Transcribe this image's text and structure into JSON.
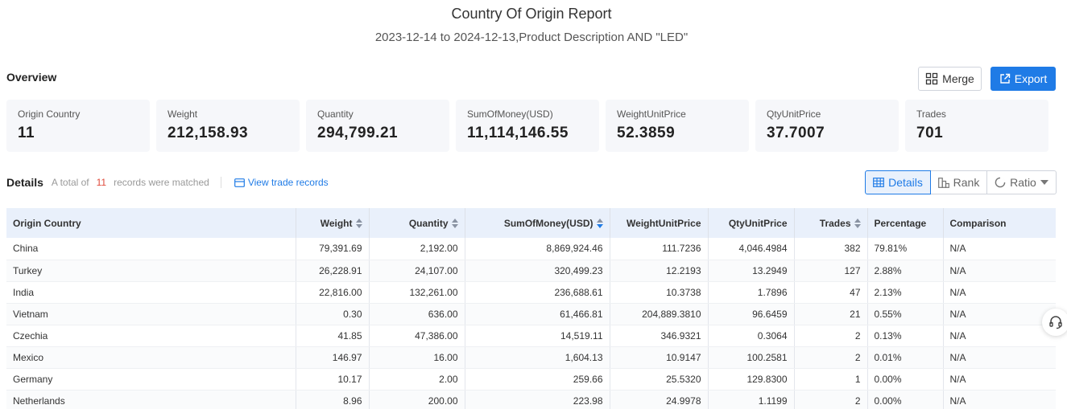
{
  "header": {
    "title": "Country Of Origin Report",
    "subtitle": "2023-12-14 to 2024-12-13,Product Description AND \"LED\""
  },
  "overview": {
    "label": "Overview",
    "merge_label": "Merge",
    "export_label": "Export",
    "stats": [
      {
        "label": "Origin Country",
        "value": "11"
      },
      {
        "label": "Weight",
        "value": "212,158.93"
      },
      {
        "label": "Quantity",
        "value": "294,799.21"
      },
      {
        "label": "SumOfMoney(USD)",
        "value": "11,114,146.55"
      },
      {
        "label": "WeightUnitPrice",
        "value": "52.3859"
      },
      {
        "label": "QtyUnitPrice",
        "value": "37.7007"
      },
      {
        "label": "Trades",
        "value": "701"
      }
    ]
  },
  "details": {
    "label": "Details",
    "total_prefix": "A total of",
    "total_count": "11",
    "total_suffix": "records were matched",
    "view_records": "View trade records",
    "tabs": {
      "details": "Details",
      "rank": "Rank",
      "ratio": "Ratio"
    }
  },
  "table": {
    "columns": [
      "Origin Country",
      "Weight",
      "Quantity",
      "SumOfMoney(USD)",
      "WeightUnitPrice",
      "QtyUnitPrice",
      "Trades",
      "Percentage",
      "Comparison"
    ],
    "rows": [
      [
        "China",
        "79,391.69",
        "2,192.00",
        "8,869,924.46",
        "111.7236",
        "4,046.4984",
        "382",
        "79.81%",
        "N/A"
      ],
      [
        "Turkey",
        "26,228.91",
        "24,107.00",
        "320,499.23",
        "12.2193",
        "13.2949",
        "127",
        "2.88%",
        "N/A"
      ],
      [
        "India",
        "22,816.00",
        "132,261.00",
        "236,688.61",
        "10.3738",
        "1.7896",
        "47",
        "2.13%",
        "N/A"
      ],
      [
        "Vietnam",
        "0.30",
        "636.00",
        "61,466.81",
        "204,889.3810",
        "96.6459",
        "21",
        "0.55%",
        "N/A"
      ],
      [
        "Czechia",
        "41.85",
        "47,386.00",
        "14,519.11",
        "346.9321",
        "0.3064",
        "2",
        "0.13%",
        "N/A"
      ],
      [
        "Mexico",
        "146.97",
        "16.00",
        "1,604.13",
        "10.9147",
        "100.2581",
        "2",
        "0.01%",
        "N/A"
      ],
      [
        "Germany",
        "10.17",
        "2.00",
        "259.66",
        "25.5320",
        "129.8300",
        "1",
        "0.00%",
        "N/A"
      ],
      [
        "Netherlands",
        "8.96",
        "200.00",
        "223.98",
        "24.9978",
        "1.1199",
        "2",
        "0.00%",
        "N/A"
      ]
    ]
  },
  "colors": {
    "accent": "#1f7be6",
    "count_highlight": "#e04b3c",
    "header_bg": "#e9f0fb"
  }
}
